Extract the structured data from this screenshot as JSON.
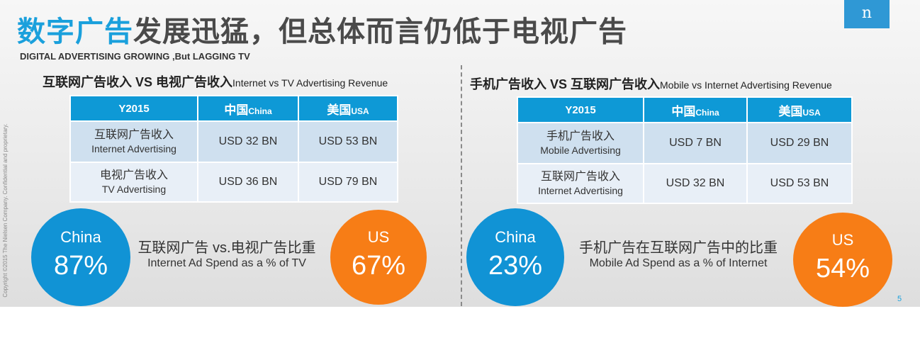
{
  "title": {
    "part1": "数字广告",
    "part2": "发展迅猛，但总体而言仍低于电视广告"
  },
  "subtitle": "DIGITAL ADVERTISING GROWING ,But LAGGING TV",
  "logo_text": "n",
  "copyright": "Copyright ©2015 The Nielsen Company. Confidential and proprietary.",
  "page_number": "5",
  "colors": {
    "accent_blue": "#1aa0dc",
    "header_blue": "#0e99d6",
    "orange": "#f77d16"
  },
  "left": {
    "heading_zh": "互联网广告收入 VS 电视广告收入",
    "heading_en": "Internet vs TV Advertising Revenue",
    "table": {
      "year": "Y2015",
      "col_china_zh": "中国",
      "col_china_en": "China",
      "col_usa_zh": "美国",
      "col_usa_en": "USA",
      "rows": [
        {
          "label_zh": "互联网广告收入",
          "label_en": "Internet Advertising",
          "china": "USD 32 BN",
          "usa": "USD 53 BN"
        },
        {
          "label_zh": "电视广告收入",
          "label_en": "TV Advertising",
          "china": "USD 36 BN",
          "usa": "USD 79 BN"
        }
      ]
    },
    "circle_china": {
      "name": "China",
      "value": "87%"
    },
    "circle_us": {
      "name": "US",
      "value": "67%"
    },
    "caption_zh": "互联网广告 vs.电视广告比重",
    "caption_en": "Internet Ad Spend as a % of TV"
  },
  "right": {
    "heading_zh": "手机广告收入 VS 互联网广告收入",
    "heading_en": "Mobile vs Internet Advertising Revenue",
    "table": {
      "year": "Y2015",
      "col_china_zh": "中国",
      "col_china_en": "China",
      "col_usa_zh": "美国",
      "col_usa_en": "USA",
      "rows": [
        {
          "label_zh": "手机广告收入",
          "label_en": "Mobile Advertising",
          "china": "USD 7 BN",
          "usa": "USD 29 BN"
        },
        {
          "label_zh": "互联网广告收入",
          "label_en": "Internet Advertising",
          "china": "USD 32 BN",
          "usa": "USD 53 BN"
        }
      ]
    },
    "circle_china": {
      "name": "China",
      "value": "23%"
    },
    "circle_us": {
      "name": "US",
      "value": "54%"
    },
    "caption_zh": "手机广告在互联网广告中的比重",
    "caption_en": "Mobile Ad Spend as a % of Internet"
  }
}
